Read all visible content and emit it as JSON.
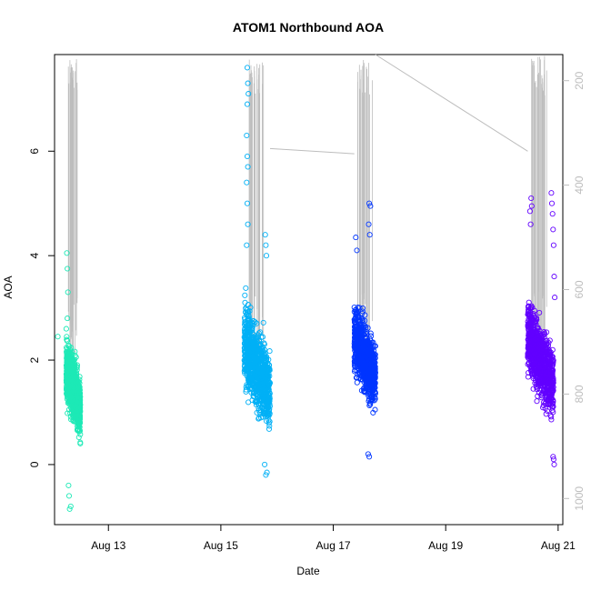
{
  "chart_data": {
    "type": "scatter",
    "title": "ATOM1 Northbound AOA",
    "xlabel": "Date",
    "ylabel": "AOA",
    "x_ticks": [
      "Aug 13",
      "Aug 15",
      "Aug 17",
      "Aug 19",
      "Aug 21"
    ],
    "x_range_days": [
      "2023-08-12T01:00",
      "2023-08-21T02:00"
    ],
    "y_ticks": [
      0,
      2,
      4,
      6
    ],
    "ylim": [
      -1.15,
      7.85
    ],
    "secondary_axis": {
      "position": "right",
      "ticks": [
        200,
        400,
        600,
        800,
        1000
      ],
      "ylim": [
        1050,
        150
      ],
      "reversed": true,
      "color": "#bdbdbd"
    },
    "grid": false,
    "legend": "none",
    "series": [
      {
        "date": "Aug 12",
        "color": "#1de9b6",
        "x_start": "2023-08-12T06:00",
        "x_end": "2023-08-12T12:00",
        "aoa_range": [
          -0.85,
          4.05
        ],
        "aoa_core": [
          0.6,
          2.3
        ],
        "points": [
          [
            12.26,
            4.05
          ],
          [
            12.27,
            3.75
          ],
          [
            12.28,
            3.3
          ],
          [
            12.27,
            2.8
          ],
          [
            12.25,
            2.6
          ],
          [
            12.1,
            2.45
          ],
          [
            12.33,
            -0.8
          ],
          [
            12.31,
            -0.85
          ],
          [
            12.3,
            -0.6
          ],
          [
            12.29,
            -0.4
          ]
        ]
      },
      {
        "date": "Aug 15",
        "color": "#00b0f6",
        "x_start": "2023-08-15T10:00",
        "x_end": "2023-08-15T21:00",
        "aoa_range": [
          -0.2,
          7.6
        ],
        "aoa_core": [
          0.7,
          3.0
        ],
        "points": [
          [
            15.47,
            7.6
          ],
          [
            15.48,
            7.3
          ],
          [
            15.49,
            7.1
          ],
          [
            15.47,
            6.9
          ],
          [
            15.46,
            6.3
          ],
          [
            15.47,
            5.9
          ],
          [
            15.48,
            5.7
          ],
          [
            15.46,
            5.4
          ],
          [
            15.47,
            5.0
          ],
          [
            15.48,
            4.6
          ],
          [
            15.46,
            4.2
          ],
          [
            15.79,
            4.4
          ],
          [
            15.8,
            4.2
          ],
          [
            15.81,
            4.0
          ],
          [
            15.82,
            -0.15
          ],
          [
            15.8,
            -0.2
          ],
          [
            15.78,
            0.0
          ]
        ]
      },
      {
        "date": "Aug 17",
        "color": "#0035ff",
        "x_start": "2023-08-17T09:00",
        "x_end": "2023-08-17T18:00",
        "aoa_range": [
          0.15,
          5.0
        ],
        "aoa_core": [
          1.1,
          3.0
        ],
        "points": [
          [
            17.4,
            4.35
          ],
          [
            17.42,
            4.1
          ],
          [
            17.64,
            5.0
          ],
          [
            17.66,
            4.95
          ],
          [
            17.63,
            4.6
          ],
          [
            17.65,
            4.4
          ],
          [
            17.62,
            0.2
          ],
          [
            17.64,
            0.15
          ]
        ]
      },
      {
        "date": "Aug 20",
        "color": "#6200ff",
        "x_start": "2023-08-20T11:00",
        "x_end": "2023-08-20T22:00",
        "aoa_range": [
          0.0,
          5.2
        ],
        "aoa_core": [
          1.0,
          3.0
        ],
        "points": [
          [
            20.5,
            4.85
          ],
          [
            20.52,
            5.1
          ],
          [
            20.53,
            4.95
          ],
          [
            20.51,
            4.6
          ],
          [
            20.88,
            5.2
          ],
          [
            20.89,
            5.0
          ],
          [
            20.9,
            4.8
          ],
          [
            20.91,
            4.5
          ],
          [
            20.92,
            4.2
          ],
          [
            20.93,
            3.6
          ],
          [
            20.94,
            3.2
          ],
          [
            20.93,
            0.0
          ],
          [
            20.92,
            0.1
          ],
          [
            20.91,
            0.15
          ]
        ]
      }
    ],
    "secondary_line": {
      "color": "#bdbdbd",
      "segments": [
        {
          "x_start": "2023-08-15T21:00",
          "x_end": "2023-08-17T09:00",
          "y_start": 330,
          "y_end": 340
        },
        {
          "x_start": "2023-08-17T18:00",
          "x_end": "2023-08-20T11:00",
          "y_start": 150,
          "y_end": 335
        }
      ]
    }
  }
}
